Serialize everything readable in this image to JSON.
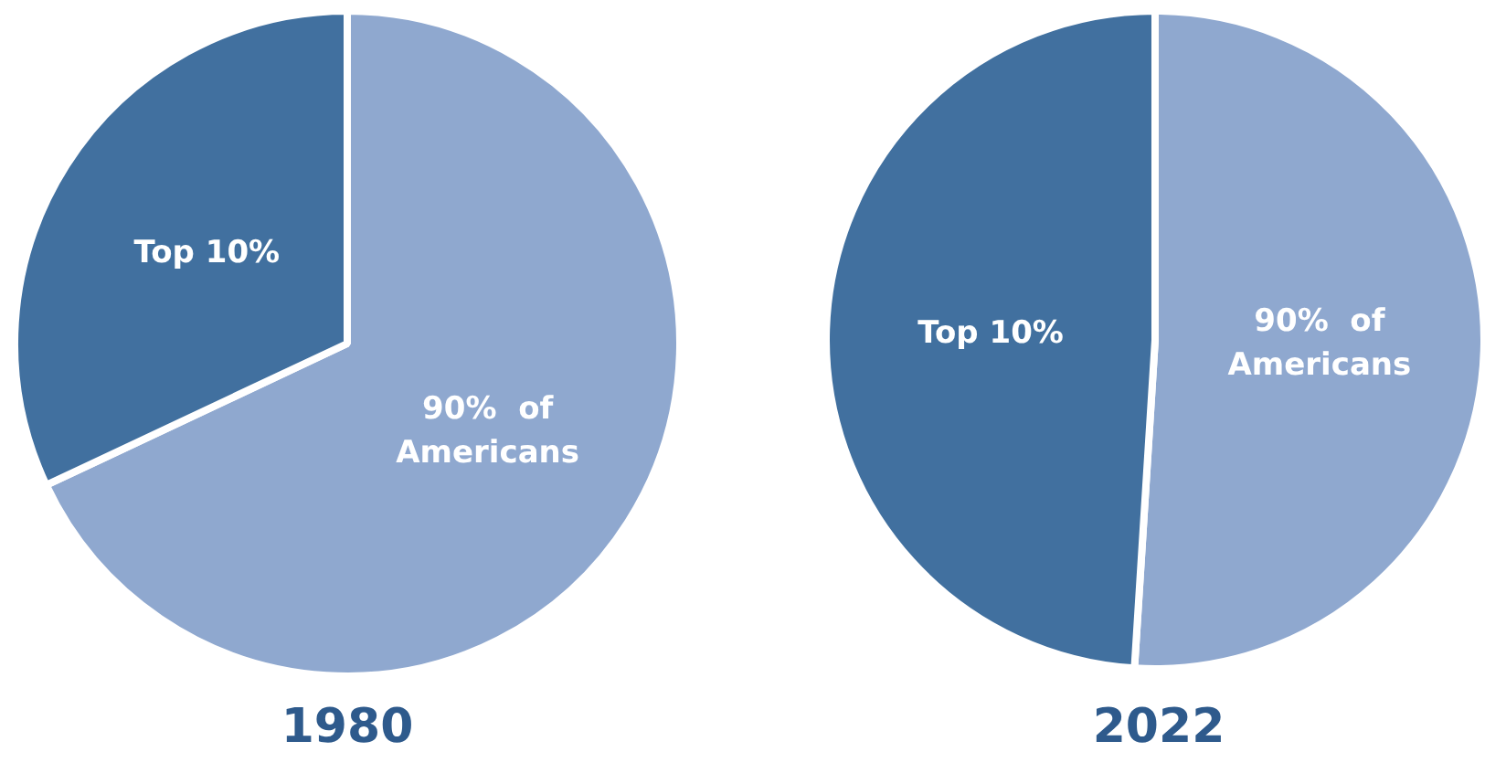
{
  "chart_data": [
    {
      "type": "pie",
      "title": "1980",
      "categories": [
        "90%  of Americans",
        "Top 10%"
      ],
      "values": [
        68,
        32
      ],
      "colors": [
        "#8fa8cf",
        "#41709f"
      ],
      "legend": false
    },
    {
      "type": "pie",
      "title": "2022",
      "categories": [
        "90%  of Americans",
        "Top 10%"
      ],
      "values": [
        51,
        49
      ],
      "colors": [
        "#8fa8cf",
        "#41709f"
      ],
      "legend": false
    }
  ]
}
